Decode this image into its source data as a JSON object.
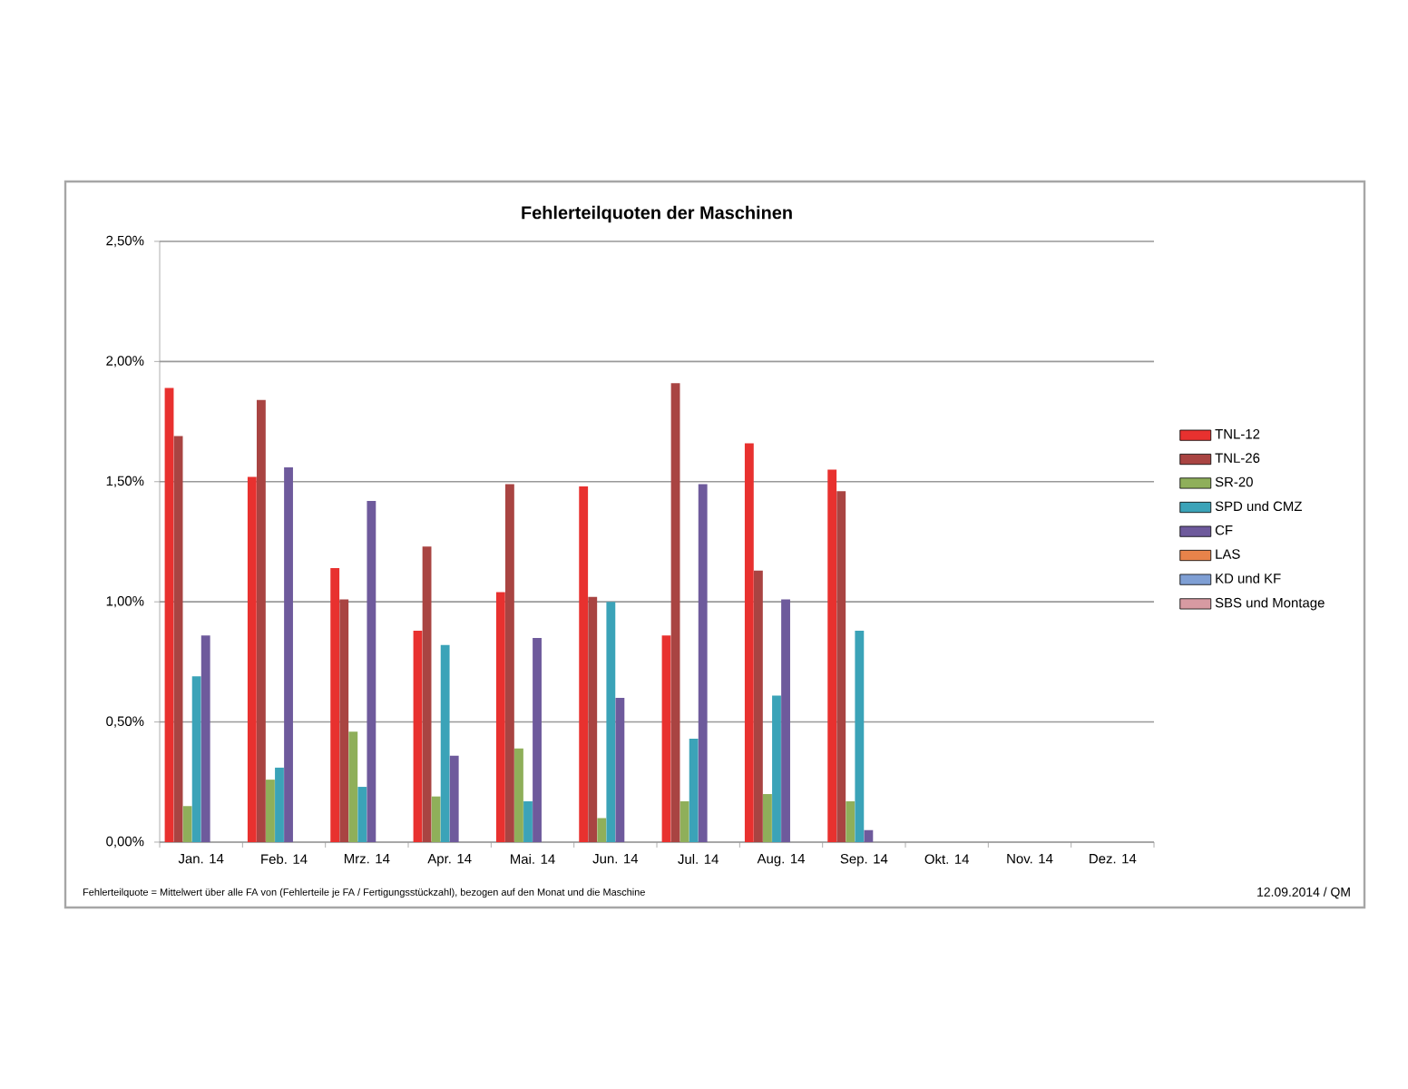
{
  "chart_data": {
    "type": "bar",
    "title": "Fehlerteilquoten der Maschinen",
    "categories": [
      "Jan. 14",
      "Feb. 14",
      "Mrz. 14",
      "Apr. 14",
      "Mai. 14",
      "Jun. 14",
      "Jul. 14",
      "Aug. 14",
      "Sep. 14",
      "Okt. 14",
      "Nov. 14",
      "Dez. 14"
    ],
    "series": [
      {
        "name": "TNL-12",
        "color": "#e8312f",
        "values": [
          1.89,
          1.52,
          1.14,
          0.88,
          1.04,
          1.48,
          0.86,
          1.66,
          1.55,
          null,
          null,
          null
        ]
      },
      {
        "name": "TNL-26",
        "color": "#a94442",
        "values": [
          1.69,
          1.84,
          1.01,
          1.23,
          1.49,
          1.02,
          1.91,
          1.13,
          1.46,
          null,
          null,
          null
        ]
      },
      {
        "name": "SR-20",
        "color": "#8faf5a",
        "values": [
          0.15,
          0.26,
          0.46,
          0.19,
          0.39,
          0.1,
          0.17,
          0.2,
          0.17,
          null,
          null,
          null
        ]
      },
      {
        "name": "SPD und CMZ",
        "color": "#3ba3b8",
        "values": [
          0.69,
          0.31,
          0.23,
          0.82,
          0.17,
          1.0,
          0.43,
          0.61,
          0.88,
          null,
          null,
          null
        ]
      },
      {
        "name": "CF",
        "color": "#6e5a9c",
        "values": [
          0.86,
          1.56,
          1.42,
          0.36,
          0.85,
          0.6,
          1.49,
          1.01,
          0.05,
          null,
          null,
          null
        ]
      },
      {
        "name": "LAS",
        "color": "#e8834a",
        "values": [
          null,
          null,
          null,
          null,
          null,
          null,
          null,
          null,
          null,
          null,
          null,
          null
        ]
      },
      {
        "name": "KD und KF",
        "color": "#7f9fd4",
        "values": [
          null,
          null,
          null,
          null,
          null,
          null,
          null,
          null,
          null,
          null,
          null,
          null
        ]
      },
      {
        "name": "SBS und Montage",
        "color": "#d79aa2",
        "values": [
          null,
          null,
          null,
          null,
          null,
          null,
          null,
          null,
          null,
          null,
          null,
          null
        ]
      }
    ],
    "ylim": [
      0,
      2.5
    ],
    "yticks": [
      {
        "value": 0,
        "label": "0,00%"
      },
      {
        "value": 0.5,
        "label": "0,50%"
      },
      {
        "value": 1.0,
        "label": "1,00%"
      },
      {
        "value": 1.5,
        "label": "1,50%"
      },
      {
        "value": 2.0,
        "label": "2,00%"
      },
      {
        "value": 2.5,
        "label": "2,50%"
      }
    ],
    "grid": "y",
    "legend": "right",
    "annotations": [
      "Fehlerteilquote = Mittelwert über alle FA von (Fehlerteile je FA / Fertigungsstückzahl), bezogen auf den Monat und die Maschine",
      "12.09.2014 / QM"
    ]
  }
}
